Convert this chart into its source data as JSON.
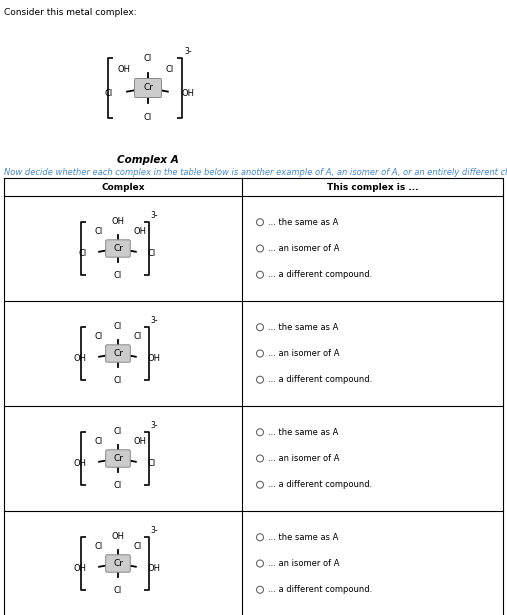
{
  "title_text": "Consider this metal complex:",
  "complex_label": "Complex A",
  "instruction_text": "Now decide whether each complex in the table below is another example of A, an isomer of A, or an entirely different chemical compound.",
  "table_header_col1": "Complex",
  "table_header_col2": "This complex is ...",
  "radio_options": [
    "... the same as A",
    "... an isomer of A",
    "... a different compound."
  ],
  "bg_color": "#ffffff",
  "text_color": "#000000",
  "instruction_color": "#4488cc",
  "complex_A": {
    "top": "Cl",
    "upper_left": "OH",
    "upper_right": "Cl",
    "left": "Cl",
    "right": "OH",
    "bottom": "Cl",
    "charge": "3-"
  },
  "row_complexes": [
    {
      "top": "OH",
      "upper_left": "Cl",
      "upper_right": "OH",
      "left": "Cl",
      "right": "Cl",
      "bottom": "Cl",
      "charge": "3-"
    },
    {
      "top": "Cl",
      "upper_left": "Cl",
      "upper_right": "Cl",
      "left": "OH",
      "right": "OH",
      "bottom": "Cl",
      "charge": "3-"
    },
    {
      "top": "Cl",
      "upper_left": "Cl",
      "upper_right": "OH",
      "left": "OH",
      "right": "Cl",
      "bottom": "Cl",
      "charge": "3-"
    },
    {
      "top": "OH",
      "upper_left": "Cl",
      "upper_right": "Cl",
      "left": "OH",
      "right": "OH",
      "bottom": "Cl",
      "charge": "3-"
    }
  ]
}
